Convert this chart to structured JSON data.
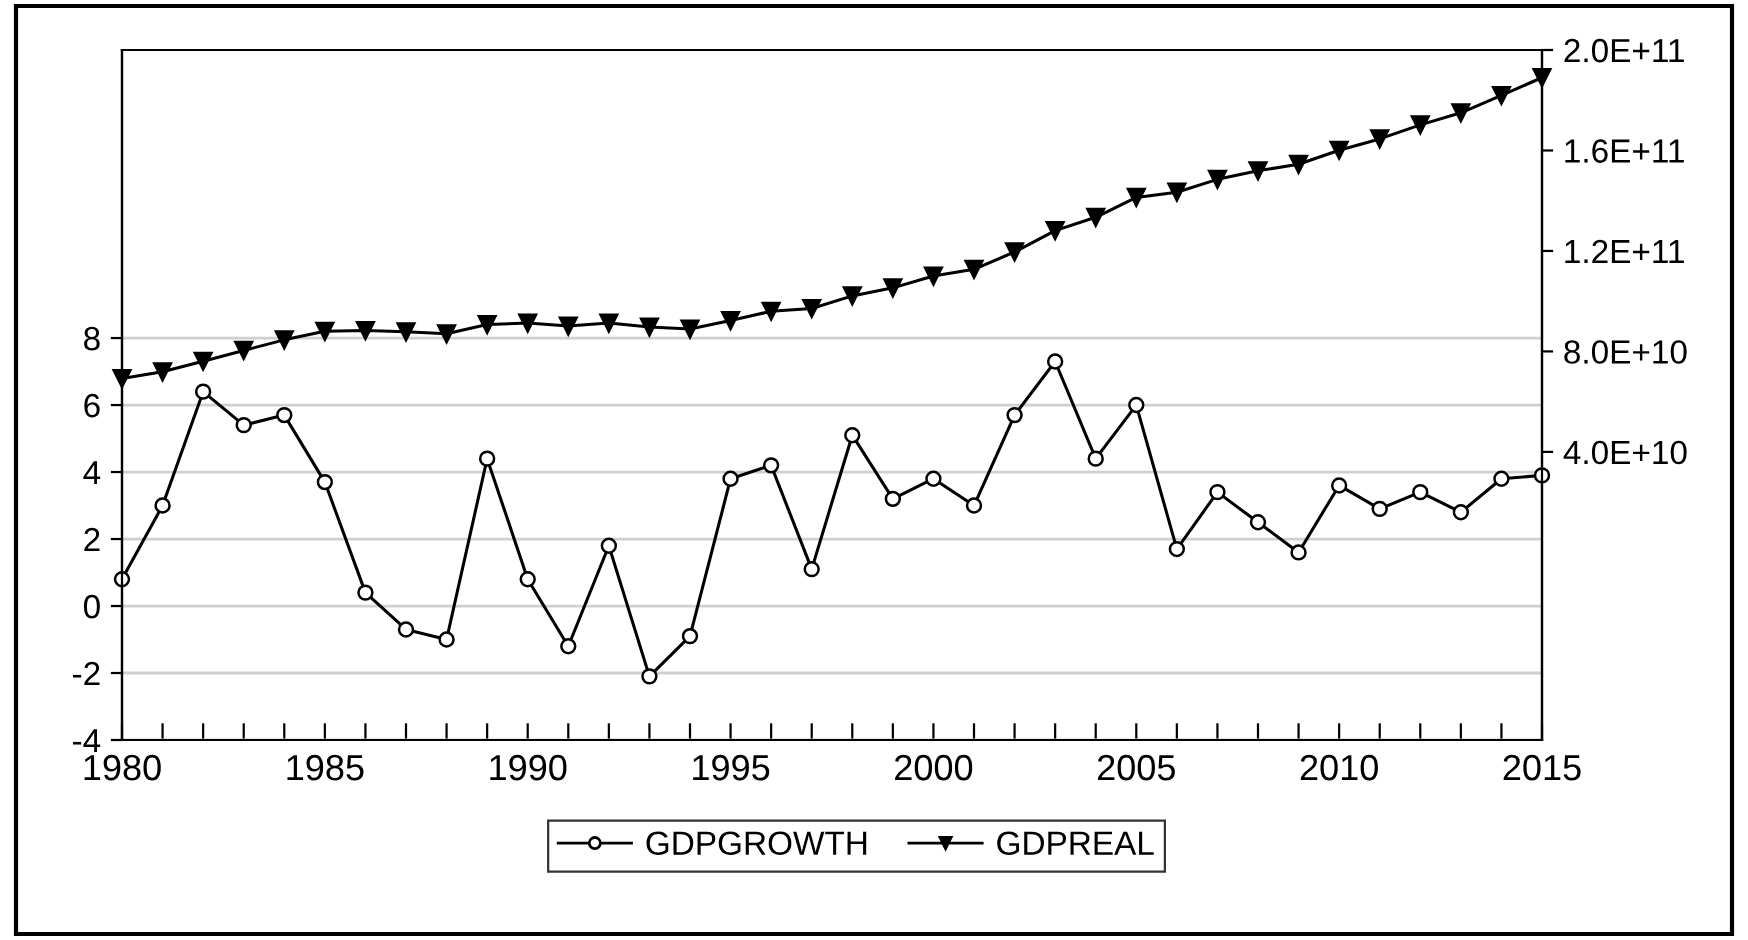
{
  "chart_data": {
    "type": "line",
    "x": [
      1980,
      1981,
      1982,
      1983,
      1984,
      1985,
      1986,
      1987,
      1988,
      1989,
      1990,
      1991,
      1992,
      1993,
      1994,
      1995,
      1996,
      1997,
      1998,
      1999,
      2000,
      2001,
      2002,
      2003,
      2004,
      2005,
      2006,
      2007,
      2008,
      2009,
      2010,
      2011,
      2012,
      2013,
      2014,
      2015
    ],
    "series": [
      {
        "name": "GDPGROWTH",
        "color": "#000000",
        "marker": "circle",
        "values": [
          0.8,
          3.0,
          6.4,
          5.4,
          5.7,
          3.7,
          0.4,
          -0.7,
          -1.0,
          4.4,
          0.8,
          -1.2,
          1.8,
          -2.1,
          -0.9,
          3.8,
          4.2,
          1.1,
          5.1,
          3.2,
          3.8,
          3.0,
          5.7,
          7.3,
          4.4,
          6.0,
          1.7,
          3.4,
          2.5,
          1.6,
          3.6,
          2.9,
          3.4,
          2.8,
          3.8,
          3.9
        ]
      },
      {
        "name": "GDPREAL",
        "color": "#000000",
        "marker": "triangle",
        "axis": "y2",
        "values": [
          69200000000.0,
          71900000000.0,
          76100000000.0,
          80400000000.0,
          84600000000.0,
          88000000000.0,
          88300000000.0,
          87800000000.0,
          87000000000.0,
          90700000000.0,
          91300000000.0,
          90100000000.0,
          91300000000.0,
          89700000000.0,
          88900000000.0,
          92300000000.0,
          96000000000.0,
          97100000000.0,
          102100000000.0,
          105300000000.0,
          110000000000.0,
          112700000000.0,
          119600000000.0,
          128100000000.0,
          133400000000.0,
          141300000000.0,
          143400000000.0,
          148500000000.0,
          151900000000.0,
          154500000000.0,
          160100000000.0,
          164600000000.0,
          170200000000.0,
          175000000000.0,
          181900000000.0,
          189000000000.0
        ]
      }
    ],
    "xlim": [
      1980,
      2015
    ],
    "xticks": [
      1980,
      {
        "value": 1981,
        "label": null
      },
      {
        "value": 1982,
        "label": null
      },
      {
        "value": 1983,
        "label": null
      },
      {
        "value": 1984,
        "label": null
      },
      1985,
      {
        "value": 1986,
        "label": null
      },
      {
        "value": 1987,
        "label": null
      },
      {
        "value": 1988,
        "label": null
      },
      {
        "value": 1989,
        "label": null
      },
      1990,
      {
        "value": 1991,
        "label": null
      },
      {
        "value": 1992,
        "label": null
      },
      {
        "value": 1993,
        "label": null
      },
      {
        "value": 1994,
        "label": null
      },
      1995,
      {
        "value": 1996,
        "label": null
      },
      {
        "value": 1997,
        "label": null
      },
      {
        "value": 1998,
        "label": null
      },
      {
        "value": 1999,
        "label": null
      },
      2000,
      {
        "value": 2001,
        "label": null
      },
      {
        "value": 2002,
        "label": null
      },
      {
        "value": 2003,
        "label": null
      },
      {
        "value": 2004,
        "label": null
      },
      2005,
      {
        "value": 2006,
        "label": null
      },
      {
        "value": 2007,
        "label": null
      },
      {
        "value": 2008,
        "label": null
      },
      {
        "value": 2009,
        "label": null
      },
      2010,
      {
        "value": 2011,
        "label": null
      },
      {
        "value": 2012,
        "label": null
      },
      {
        "value": 2013,
        "label": null
      },
      {
        "value": 2014,
        "label": null
      },
      2015
    ],
    "ylim": [
      -4,
      16.6
    ],
    "yticks": [
      -4,
      -2,
      0,
      2,
      4,
      6,
      8
    ],
    "y2lim": [
      -74700000000.0,
      200000000000.0
    ],
    "y2ticks": [
      {
        "value": 40000000000.0,
        "label": "4.0E+10"
      },
      {
        "value": 80000000000.0,
        "label": "8.0E+10"
      },
      {
        "value": 120000000000.0,
        "label": "1.2E+11"
      },
      {
        "value": 160000000000.0,
        "label": "1.6E+11"
      },
      {
        "value": 200000000000.0,
        "label": "2.0E+11"
      }
    ],
    "grid": "y",
    "legend": "bottom",
    "line_style": "solid"
  }
}
